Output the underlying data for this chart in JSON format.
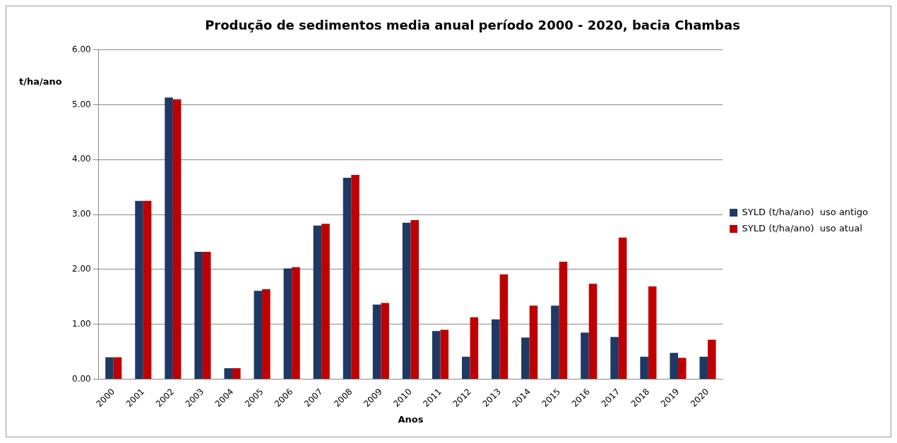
{
  "chart_data": {
    "type": "bar",
    "title": "Produção de sedimentos media anual período 2000 - 2020, bacia Chambas",
    "xlabel": "Anos",
    "ylabel": "t/ha/ano",
    "categories": [
      "2000",
      "2001",
      "2002",
      "2003",
      "2004",
      "2005",
      "2006",
      "2007",
      "2008",
      "2009",
      "2010",
      "2011",
      "2012",
      "2013",
      "2014",
      "2015",
      "2016",
      "2017",
      "2018",
      "2019",
      "2020"
    ],
    "series": [
      {
        "name": "SYLD (t/ha/ano)  uso antigo",
        "color": "#1f3864",
        "values": [
          0.4,
          3.25,
          5.13,
          2.32,
          0.2,
          1.61,
          2.02,
          2.8,
          3.67,
          1.36,
          2.85,
          0.88,
          0.41,
          1.09,
          0.76,
          1.34,
          0.85,
          0.77,
          0.41,
          0.48,
          0.41
        ]
      },
      {
        "name": "SYLD (t/ha/ano)  uso atual",
        "color": "#c00000",
        "values": [
          0.4,
          3.25,
          5.1,
          2.32,
          0.2,
          1.64,
          2.04,
          2.83,
          3.72,
          1.39,
          2.9,
          0.9,
          1.13,
          1.91,
          1.34,
          2.14,
          1.74,
          2.58,
          1.69,
          0.39,
          0.72
        ]
      }
    ],
    "ylim": [
      0,
      6
    ],
    "yticks": [
      {
        "value": 0,
        "label": "0.00"
      },
      {
        "value": 1,
        "label": "1.00"
      },
      {
        "value": 2,
        "label": "2.00"
      },
      {
        "value": 3,
        "label": "3.00"
      },
      {
        "value": 4,
        "label": "4.00"
      },
      {
        "value": 5,
        "label": "5.00"
      },
      {
        "value": 6,
        "label": "6.00"
      }
    ],
    "grid": "y",
    "legend": "right"
  }
}
